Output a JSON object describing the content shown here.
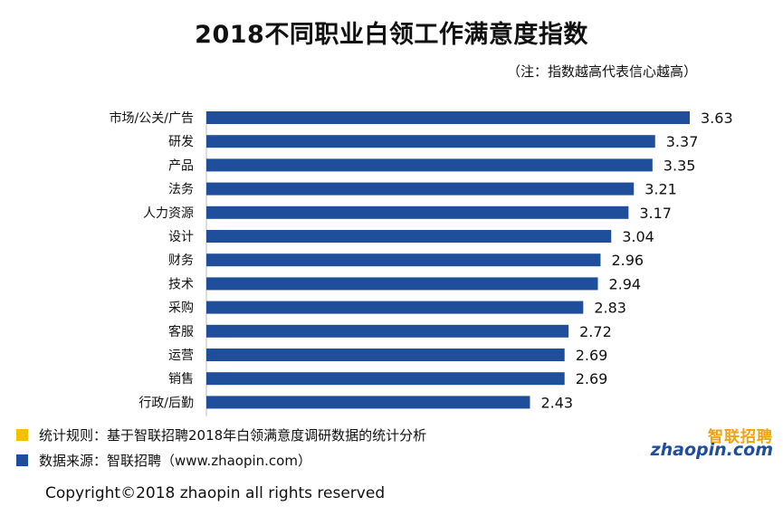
{
  "chart_data": {
    "type": "bar",
    "orientation": "horizontal",
    "title": "2018不同职业白领工作满意度指数",
    "subtitle": "（注：指数越高代表信心越高）",
    "categories": [
      "市场/公关/广告",
      "研发",
      "产品",
      "法务",
      "人力资源",
      "设计",
      "财务",
      "技术",
      "采购",
      "客服",
      "运营",
      "销售",
      "行政/后勤"
    ],
    "values": [
      3.63,
      3.37,
      3.35,
      3.21,
      3.17,
      3.04,
      2.96,
      2.94,
      2.83,
      2.72,
      2.69,
      2.69,
      2.43
    ],
    "xlim": [
      0,
      3.63
    ],
    "grid": false,
    "bar_color": "#1f4e9a"
  },
  "notes": {
    "rule": {
      "text": "统计规则：基于智联招聘2018年白领满意度调研数据的统计分析",
      "color": "#f5c000"
    },
    "source": {
      "text": "数据来源：智联招聘（www.zhaopin.com）",
      "color": "#1f4e9a"
    }
  },
  "logo": {
    "cn": "智联招聘",
    "en": "zhaopin.com"
  },
  "copyright": "Copyright©2018 zhaopin all rights reserved"
}
